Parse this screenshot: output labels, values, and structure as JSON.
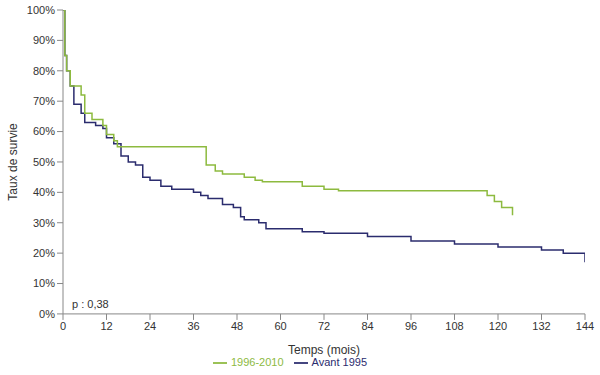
{
  "chart_data": {
    "type": "line",
    "y_label": "Taux de survie",
    "x_label": "Temps (mois)",
    "annotation": "p : 0,38",
    "xlim": [
      0,
      144
    ],
    "xticks": [
      0,
      12,
      24,
      36,
      48,
      60,
      72,
      84,
      96,
      108,
      120,
      132,
      144
    ],
    "ylim": [
      0,
      100
    ],
    "yticks": [
      {
        "value": 0,
        "label": "0%"
      },
      {
        "value": 10,
        "label": "10%"
      },
      {
        "value": 20,
        "label": "20%"
      },
      {
        "value": 30,
        "label": "30%"
      },
      {
        "value": 40,
        "label": "40%"
      },
      {
        "value": 50,
        "label": "50%"
      },
      {
        "value": 60,
        "label": "60%"
      },
      {
        "value": 70,
        "label": "70%"
      },
      {
        "value": 80,
        "label": "80%"
      },
      {
        "value": 90,
        "label": "90%"
      },
      {
        "value": 100,
        "label": "100%"
      }
    ],
    "grid": false,
    "legend": "bottom",
    "line_style": "step",
    "series": [
      {
        "name": "Avant 1995",
        "color": "#2b2c6e",
        "x": [
          0,
          0.5,
          1,
          2,
          3,
          5,
          6,
          9,
          11,
          12,
          14,
          16,
          18,
          20,
          22,
          24,
          27,
          30,
          36,
          38,
          40,
          44,
          47,
          49,
          50,
          54,
          56,
          60,
          66,
          72,
          84,
          96,
          108,
          120,
          132,
          138,
          144
        ],
        "values": [
          100,
          85,
          80,
          75,
          69,
          66,
          63,
          62,
          61,
          58,
          56,
          52,
          50,
          49,
          45,
          44,
          42,
          41,
          40,
          39,
          38,
          36,
          35,
          32,
          31,
          30,
          28,
          28,
          27,
          26.5,
          25.5,
          24,
          23,
          22,
          21,
          20,
          17
        ]
      },
      {
        "name": "1996-2010",
        "color": "#8dba3f",
        "x": [
          0,
          0.5,
          1,
          2,
          5,
          6,
          8,
          11,
          12,
          14,
          15,
          16,
          39,
          39.5,
          42,
          44,
          48,
          50,
          53,
          55,
          60,
          66,
          72,
          76,
          116,
          117,
          119,
          121,
          124
        ],
        "values": [
          100,
          85,
          80,
          75,
          72,
          66,
          64,
          62,
          59,
          57,
          55,
          55,
          55,
          49,
          47,
          46,
          46,
          45,
          44,
          43.5,
          43.5,
          42,
          41,
          40.5,
          40.5,
          39,
          37,
          35,
          32.5
        ]
      }
    ]
  }
}
